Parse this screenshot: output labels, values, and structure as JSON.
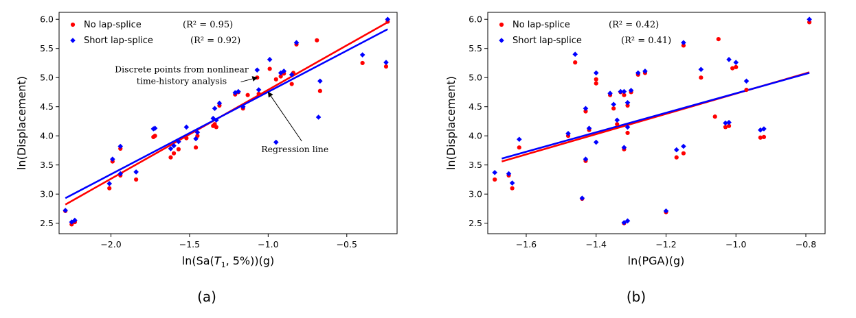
{
  "chart_data": [
    {
      "type": "scatter",
      "panel_label": "(a)",
      "xlabel_prefix": "ln(Sa(",
      "xlabel_var": "T",
      "xlabel_sub": "1",
      "xlabel_suffix": ", 5%))(g)",
      "ylabel": "ln(Displacement)",
      "xlim": [
        -2.33,
        -0.18
      ],
      "ylim": [
        2.32,
        6.12
      ],
      "xticks": [
        -2.0,
        -1.5,
        -1.0,
        -0.5
      ],
      "xtick_labels": [
        "−2.0",
        "−1.5",
        "−1.0",
        "−0.5"
      ],
      "yticks": [
        2.5,
        3.0,
        3.5,
        4.0,
        4.5,
        5.0,
        5.5,
        6.0
      ],
      "ytick_labels": [
        "2.5",
        "3.0",
        "3.5",
        "4.0",
        "4.5",
        "5.0",
        "5.5",
        "6.0"
      ],
      "legend_position": "top-left",
      "series": [
        {
          "name": "No lap-splice",
          "r2": "(R² = 0.95)",
          "color": "#ff0000",
          "marker": "circle",
          "points": [
            [
              -2.29,
              2.71
            ],
            [
              -2.25,
              2.48
            ],
            [
              -2.23,
              2.52
            ],
            [
              -2.01,
              3.1
            ],
            [
              -1.99,
              3.56
            ],
            [
              -1.94,
              3.32
            ],
            [
              -1.94,
              3.78
            ],
            [
              -1.84,
              3.25
            ],
            [
              -1.73,
              3.98
            ],
            [
              -1.72,
              4.0
            ],
            [
              -1.62,
              3.63
            ],
            [
              -1.6,
              3.7
            ],
            [
              -1.57,
              3.77
            ],
            [
              -1.52,
              3.96
            ],
            [
              -1.46,
              3.8
            ],
            [
              -1.45,
              4.0
            ],
            [
              -1.35,
              4.17
            ],
            [
              -1.34,
              4.2
            ],
            [
              -1.33,
              4.15
            ],
            [
              -1.31,
              4.52
            ],
            [
              -1.21,
              4.71
            ],
            [
              -1.19,
              4.75
            ],
            [
              -1.16,
              4.47
            ],
            [
              -1.13,
              4.7
            ],
            [
              -1.06,
              4.72
            ],
            [
              -1.07,
              5.0
            ],
            [
              -0.99,
              5.15
            ],
            [
              -0.95,
              4.97
            ],
            [
              -0.92,
              5.02
            ],
            [
              -0.9,
              5.07
            ],
            [
              -0.85,
              4.89
            ],
            [
              -0.84,
              5.08
            ],
            [
              -0.82,
              5.57
            ],
            [
              -0.69,
              5.64
            ],
            [
              -0.67,
              4.77
            ],
            [
              -0.4,
              5.25
            ],
            [
              -0.25,
              5.19
            ],
            [
              -0.24,
              5.96
            ]
          ]
        },
        {
          "name": "Short lap-splice",
          "r2": "(R² = 0.92)",
          "color": "#0000ff",
          "marker": "diamond",
          "points": [
            [
              -2.29,
              2.72
            ],
            [
              -2.25,
              2.52
            ],
            [
              -2.23,
              2.55
            ],
            [
              -2.01,
              3.18
            ],
            [
              -1.99,
              3.6
            ],
            [
              -1.94,
              3.35
            ],
            [
              -1.94,
              3.82
            ],
            [
              -1.84,
              3.38
            ],
            [
              -1.73,
              4.12
            ],
            [
              -1.72,
              4.13
            ],
            [
              -1.62,
              3.78
            ],
            [
              -1.6,
              3.83
            ],
            [
              -1.57,
              3.9
            ],
            [
              -1.52,
              4.15
            ],
            [
              -1.46,
              3.95
            ],
            [
              -1.45,
              4.06
            ],
            [
              -1.35,
              4.3
            ],
            [
              -1.34,
              4.47
            ],
            [
              -1.33,
              4.27
            ],
            [
              -1.31,
              4.56
            ],
            [
              -1.21,
              4.74
            ],
            [
              -1.19,
              4.76
            ],
            [
              -1.16,
              4.5
            ],
            [
              -1.07,
              5.13
            ],
            [
              -1.06,
              4.79
            ],
            [
              -0.99,
              5.31
            ],
            [
              -0.95,
              3.89
            ],
            [
              -0.92,
              5.08
            ],
            [
              -0.9,
              5.11
            ],
            [
              -0.85,
              5.05
            ],
            [
              -0.82,
              5.6
            ],
            [
              -0.67,
              4.94
            ],
            [
              -0.68,
              4.32
            ],
            [
              -0.4,
              5.39
            ],
            [
              -0.25,
              5.26
            ],
            [
              -0.24,
              6.0
            ]
          ]
        }
      ],
      "regression": [
        {
          "series": "No lap-splice",
          "color": "#ff0000",
          "x": [
            -2.29,
            -0.24
          ],
          "y": [
            2.82,
            5.95
          ]
        },
        {
          "series": "Short lap-splice",
          "color": "#0000ff",
          "x": [
            -2.29,
            -0.24
          ],
          "y": [
            2.93,
            5.83
          ]
        }
      ],
      "annotations": [
        {
          "lines": [
            "Discrete points from nonlinear",
            "time-history analysis"
          ],
          "xy": [
            -1.07,
            5.0
          ],
          "xytext": [
            -1.55,
            5.09
          ]
        },
        {
          "lines": [
            "Regression line"
          ],
          "xy": [
            -1.0,
            4.75
          ],
          "xytext": [
            -0.83,
            3.72
          ]
        }
      ]
    },
    {
      "type": "scatter",
      "panel_label": "(b)",
      "xlabel": "ln(PGA)(g)",
      "ylabel": "ln(Displacement)",
      "xlim": [
        -1.71,
        -0.745
      ],
      "ylim": [
        2.32,
        6.12
      ],
      "xticks": [
        -1.6,
        -1.4,
        -1.2,
        -1.0,
        -0.8
      ],
      "xtick_labels": [
        "−1.6",
        "−1.4",
        "−1.2",
        "−1.0",
        "−0.8"
      ],
      "yticks": [
        2.5,
        3.0,
        3.5,
        4.0,
        4.5,
        5.0,
        5.5,
        6.0
      ],
      "ytick_labels": [
        "2.5",
        "3.0",
        "3.5",
        "4.0",
        "4.5",
        "5.0",
        "5.5",
        "6.0"
      ],
      "legend_position": "top-left",
      "series": [
        {
          "name": "No lap-splice",
          "r2": "(R² = 0.42)",
          "color": "#ff0000",
          "marker": "circle",
          "points": [
            [
              -1.69,
              3.25
            ],
            [
              -1.65,
              3.32
            ],
            [
              -1.64,
              3.1
            ],
            [
              -1.62,
              3.8
            ],
            [
              -1.48,
              4.0
            ],
            [
              -1.46,
              5.26
            ],
            [
              -1.43,
              4.42
            ],
            [
              -1.43,
              3.57
            ],
            [
              -1.42,
              4.1
            ],
            [
              -1.4,
              4.9
            ],
            [
              -1.4,
              4.97
            ],
            [
              -1.36,
              4.7
            ],
            [
              -1.35,
              4.47
            ],
            [
              -1.34,
              4.2
            ],
            [
              -1.33,
              4.75
            ],
            [
              -1.32,
              3.77
            ],
            [
              -1.32,
              4.7
            ],
            [
              -1.31,
              4.52
            ],
            [
              -1.31,
              4.05
            ],
            [
              -1.3,
              4.75
            ],
            [
              -1.28,
              5.05
            ],
            [
              -1.26,
              5.08
            ],
            [
              -1.2,
              2.69
            ],
            [
              -1.17,
              3.63
            ],
            [
              -1.15,
              3.7
            ],
            [
              -1.15,
              5.55
            ],
            [
              -1.1,
              5.0
            ],
            [
              -1.06,
              4.33
            ],
            [
              -1.05,
              5.66
            ],
            [
              -1.03,
              4.15
            ],
            [
              -1.02,
              4.17
            ],
            [
              -1.01,
              5.16
            ],
            [
              -1.0,
              5.18
            ],
            [
              -0.97,
              4.79
            ],
            [
              -0.93,
              3.97
            ],
            [
              -0.92,
              3.98
            ],
            [
              -0.79,
              5.95
            ],
            [
              -1.44,
              2.92
            ],
            [
              -1.32,
              2.5
            ]
          ]
        },
        {
          "name": "Short lap-splice",
          "r2": "(R² = 0.41)",
          "color": "#0000ff",
          "marker": "diamond",
          "points": [
            [
              -1.69,
              3.37
            ],
            [
              -1.65,
              3.35
            ],
            [
              -1.64,
              3.19
            ],
            [
              -1.62,
              3.94
            ],
            [
              -1.48,
              4.04
            ],
            [
              -1.46,
              5.4
            ],
            [
              -1.43,
              4.47
            ],
            [
              -1.43,
              3.6
            ],
            [
              -1.42,
              4.13
            ],
            [
              -1.4,
              5.08
            ],
            [
              -1.4,
              3.89
            ],
            [
              -1.36,
              4.73
            ],
            [
              -1.35,
              4.54
            ],
            [
              -1.34,
              4.27
            ],
            [
              -1.33,
              4.76
            ],
            [
              -1.32,
              3.8
            ],
            [
              -1.32,
              4.76
            ],
            [
              -1.31,
              4.57
            ],
            [
              -1.31,
              4.15
            ],
            [
              -1.3,
              4.78
            ],
            [
              -1.28,
              5.08
            ],
            [
              -1.26,
              5.11
            ],
            [
              -1.2,
              2.71
            ],
            [
              -1.17,
              3.76
            ],
            [
              -1.15,
              3.82
            ],
            [
              -1.15,
              5.6
            ],
            [
              -1.1,
              5.14
            ],
            [
              -1.03,
              4.22
            ],
            [
              -1.02,
              4.23
            ],
            [
              -1.02,
              5.31
            ],
            [
              -1.0,
              5.26
            ],
            [
              -0.97,
              4.94
            ],
            [
              -0.93,
              4.1
            ],
            [
              -0.92,
              4.12
            ],
            [
              -0.79,
              6.0
            ],
            [
              -1.44,
              2.93
            ],
            [
              -1.32,
              2.51
            ],
            [
              -1.31,
              2.54
            ]
          ]
        }
      ],
      "regression": [
        {
          "series": "No lap-splice",
          "color": "#ff0000",
          "x": [
            -1.67,
            -0.79
          ],
          "y": [
            3.56,
            5.09
          ]
        },
        {
          "series": "Short lap-splice",
          "color": "#0000ff",
          "x": [
            -1.67,
            -0.79
          ],
          "y": [
            3.61,
            5.08
          ]
        }
      ]
    }
  ]
}
